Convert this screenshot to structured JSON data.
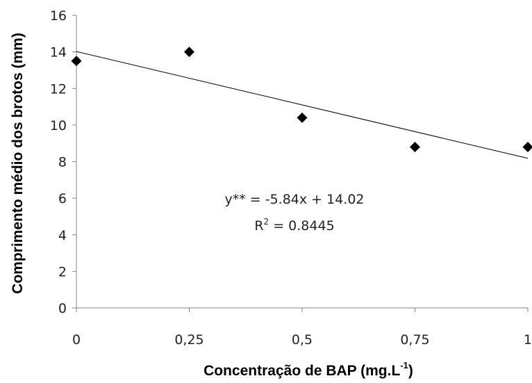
{
  "chart_data": {
    "type": "scatter",
    "title": "",
    "xlabel": "Concentração de BAP (mg.L",
    "xlabel_sup": "-1",
    "xlabel_tail": ")",
    "ylabel": "Comprimento médio dos brotos (mm)",
    "xlim": [
      0,
      1
    ],
    "ylim": [
      0,
      16
    ],
    "x_ticks": [
      0,
      0.25,
      0.5,
      0.75,
      1
    ],
    "x_tick_labels": [
      "0",
      "0,25",
      "0,5",
      "0,75",
      "1"
    ],
    "y_ticks": [
      0,
      2,
      4,
      6,
      8,
      10,
      12,
      14,
      16
    ],
    "y_tick_labels": [
      "0",
      "2",
      "4",
      "6",
      "8",
      "10",
      "12",
      "14",
      "16"
    ],
    "grid": false,
    "series": [
      {
        "x": [
          0,
          0.25,
          0.5,
          0.75,
          1
        ],
        "y": [
          13.5,
          14.0,
          10.4,
          8.8,
          8.8
        ],
        "marker": "diamond",
        "color": "#000000"
      }
    ],
    "trendline": {
      "slope": -5.84,
      "intercept": 14.02,
      "color": "#000000"
    },
    "annotations": {
      "equation": "y** = -5.84x + 14.02",
      "r2_prefix": "R",
      "r2_sup": "2",
      "r2_value": " = 0.8445"
    }
  }
}
